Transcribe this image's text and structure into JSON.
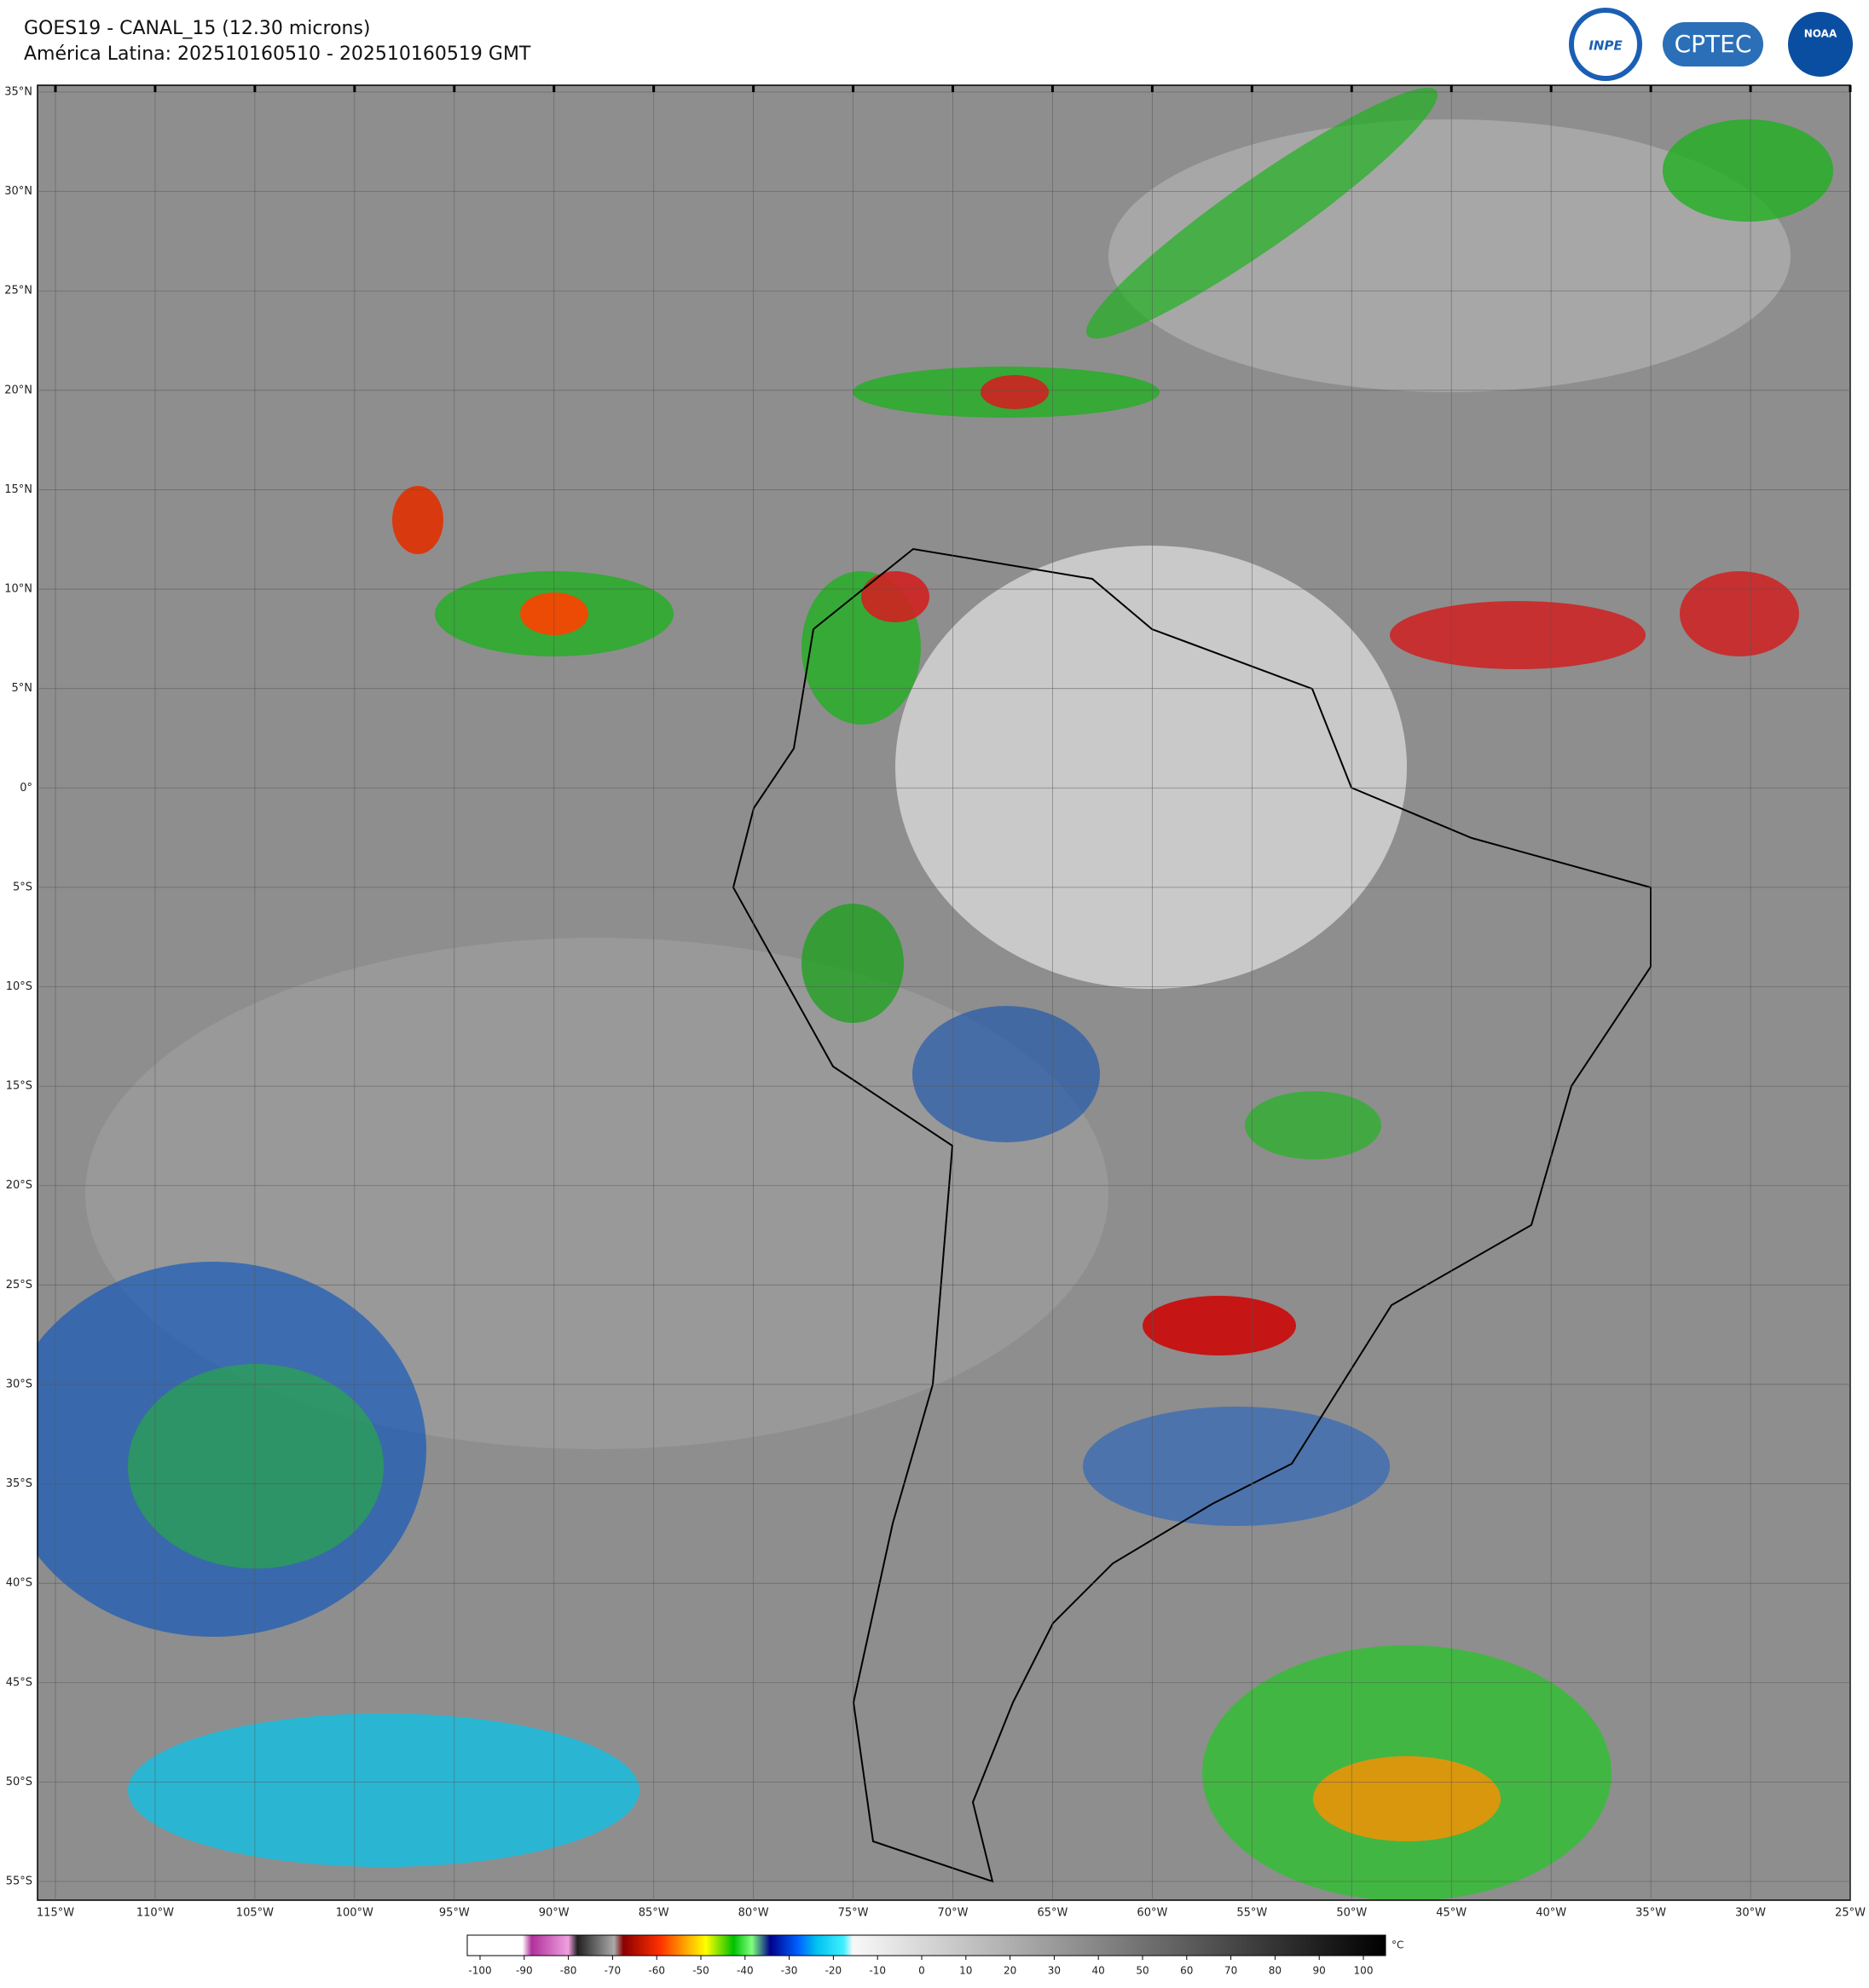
{
  "header": {
    "title": "GOES19 - CANAL_15 (12.30 microns)",
    "subtitle": "América Latina: 202510160510 - 202510160519 GMT"
  },
  "logos": [
    "INPE",
    "CPTEC",
    "NOAA"
  ],
  "map": {
    "lat_labels": [
      "35°N",
      "30°N",
      "25°N",
      "20°N",
      "15°N",
      "10°N",
      "5°N",
      "0°",
      "5°S",
      "10°S",
      "15°S",
      "20°S",
      "25°S",
      "30°S",
      "35°S",
      "40°S",
      "45°S",
      "50°S",
      "55°S"
    ],
    "lon_labels": [
      "115°W",
      "110°W",
      "105°W",
      "100°W",
      "95°W",
      "90°W",
      "85°W",
      "80°W",
      "75°W",
      "70°W",
      "65°W",
      "60°W",
      "55°W",
      "50°W",
      "45°W",
      "40°W",
      "35°W",
      "30°W",
      "25°W"
    ]
  },
  "colorbar": {
    "ticks": [
      -100,
      -90,
      -80,
      -70,
      -60,
      -50,
      -40,
      -30,
      -20,
      -10,
      0,
      10,
      20,
      30,
      40,
      50,
      60,
      70,
      80,
      90,
      100
    ],
    "unit": "°C"
  }
}
